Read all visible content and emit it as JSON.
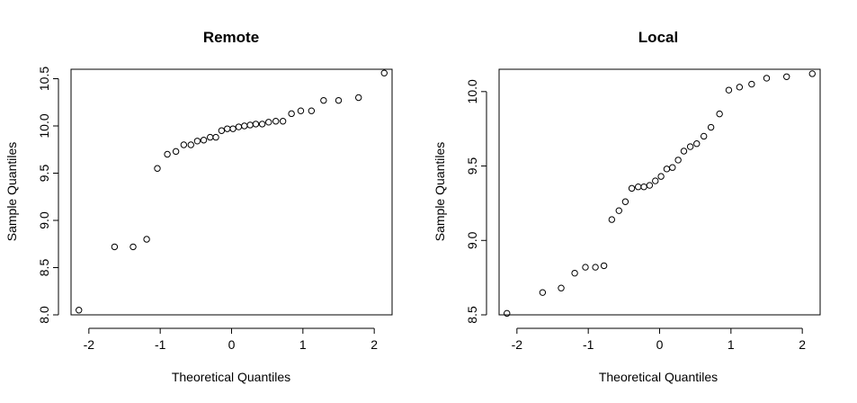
{
  "chart_data": [
    {
      "type": "scatter",
      "title": "Remote",
      "xlabel": "Theoretical Quantiles",
      "ylabel": "Sample Quantiles",
      "xlim": [
        -2.25,
        2.25
      ],
      "ylim": [
        8.0,
        10.6
      ],
      "xticks": [
        -2,
        -1,
        0,
        1,
        2
      ],
      "yticks": [
        8.0,
        8.5,
        9.0,
        9.5,
        10.0,
        10.5
      ],
      "xtick_labels": [
        "-2",
        "-1",
        "0",
        "1",
        "2"
      ],
      "ytick_labels": [
        "8.0",
        "8.5",
        "9.0",
        "9.5",
        "10.0",
        "10.5"
      ],
      "grid": false,
      "x": [
        -2.14,
        -1.64,
        -1.38,
        -1.19,
        -1.04,
        -0.9,
        -0.78,
        -0.67,
        -0.57,
        -0.48,
        -0.39,
        -0.3,
        -0.22,
        -0.14,
        -0.06,
        0.02,
        0.1,
        0.18,
        0.26,
        0.34,
        0.43,
        0.52,
        0.62,
        0.72,
        0.84,
        0.97,
        1.12,
        1.29,
        1.5,
        1.78,
        2.14
      ],
      "y": [
        8.05,
        8.72,
        8.72,
        8.8,
        9.55,
        9.7,
        9.73,
        9.8,
        9.8,
        9.84,
        9.85,
        9.88,
        9.88,
        9.95,
        9.97,
        9.97,
        9.99,
        10.0,
        10.01,
        10.02,
        10.02,
        10.04,
        10.05,
        10.05,
        10.13,
        10.16,
        10.16,
        10.27,
        10.27,
        10.3,
        10.56
      ]
    },
    {
      "type": "scatter",
      "title": "Local",
      "xlabel": "Theoretical Quantiles",
      "ylabel": "Sample Quantiles",
      "xlim": [
        -2.25,
        2.25
      ],
      "ylim": [
        8.5,
        10.15
      ],
      "xticks": [
        -2,
        -1,
        0,
        1,
        2
      ],
      "yticks": [
        8.5,
        9.0,
        9.5,
        10.0
      ],
      "xtick_labels": [
        "-2",
        "-1",
        "0",
        "1",
        "2"
      ],
      "ytick_labels": [
        "8.5",
        "9.0",
        "9.5",
        "10.0"
      ],
      "grid": false,
      "x": [
        -2.14,
        -1.64,
        -1.38,
        -1.19,
        -1.04,
        -0.9,
        -0.78,
        -0.67,
        -0.57,
        -0.48,
        -0.39,
        -0.3,
        -0.22,
        -0.14,
        -0.06,
        0.02,
        0.1,
        0.18,
        0.26,
        0.34,
        0.43,
        0.52,
        0.62,
        0.72,
        0.84,
        0.97,
        1.12,
        1.29,
        1.5,
        1.78,
        2.14
      ],
      "y": [
        8.51,
        8.65,
        8.68,
        8.78,
        8.82,
        8.82,
        8.83,
        9.14,
        9.2,
        9.26,
        9.35,
        9.36,
        9.36,
        9.37,
        9.4,
        9.43,
        9.48,
        9.49,
        9.54,
        9.6,
        9.63,
        9.65,
        9.7,
        9.76,
        9.85,
        10.01,
        10.03,
        10.05,
        10.09,
        10.1,
        10.12
      ]
    }
  ]
}
